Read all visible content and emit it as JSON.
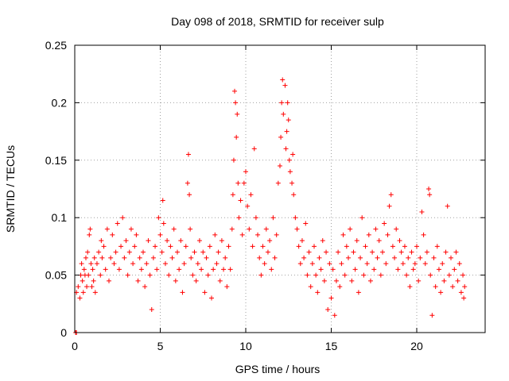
{
  "chart_data": {
    "type": "scatter",
    "title": "Day 098 of 2018, SRMTID for receiver sulp",
    "xlabel": "GPS time / hours",
    "ylabel": "SRMTID / TECUs",
    "xlim": [
      0,
      24
    ],
    "ylim": [
      0,
      0.25
    ],
    "xticks": [
      0,
      5,
      10,
      15,
      20
    ],
    "xtick_labels": [
      "0",
      "5",
      "10",
      "15",
      "20"
    ],
    "yticks": [
      0,
      0.05,
      0.1,
      0.15,
      0.2,
      0.25
    ],
    "ytick_labels": [
      "0",
      "0.05",
      "0.1",
      "0.15",
      "0.2",
      "0.25"
    ],
    "grid": true,
    "marker": "+",
    "series": [
      {
        "color": "#ff0000",
        "points": [
          [
            0.05,
            0.0
          ],
          [
            0.1,
            0.0
          ],
          [
            0.1,
            0.035
          ],
          [
            0.2,
            0.04
          ],
          [
            0.3,
            0.03
          ],
          [
            0.35,
            0.05
          ],
          [
            0.4,
            0.06
          ],
          [
            0.45,
            0.045
          ],
          [
            0.5,
            0.035
          ],
          [
            0.55,
            0.055
          ],
          [
            0.6,
            0.05
          ],
          [
            0.65,
            0.065
          ],
          [
            0.7,
            0.04
          ],
          [
            0.75,
            0.07
          ],
          [
            0.8,
            0.05
          ],
          [
            0.85,
            0.085
          ],
          [
            0.9,
            0.09
          ],
          [
            0.95,
            0.06
          ],
          [
            1.0,
            0.04
          ],
          [
            1.05,
            0.055
          ],
          [
            1.1,
            0.045
          ],
          [
            1.15,
            0.065
          ],
          [
            1.2,
            0.035
          ],
          [
            1.3,
            0.06
          ],
          [
            1.4,
            0.07
          ],
          [
            1.5,
            0.05
          ],
          [
            1.55,
            0.08
          ],
          [
            1.6,
            0.065
          ],
          [
            1.7,
            0.075
          ],
          [
            1.8,
            0.055
          ],
          [
            1.9,
            0.09
          ],
          [
            2.0,
            0.045
          ],
          [
            2.1,
            0.065
          ],
          [
            2.2,
            0.085
          ],
          [
            2.3,
            0.06
          ],
          [
            2.4,
            0.07
          ],
          [
            2.5,
            0.095
          ],
          [
            2.6,
            0.055
          ],
          [
            2.7,
            0.075
          ],
          [
            2.8,
            0.1
          ],
          [
            2.9,
            0.065
          ],
          [
            3.0,
            0.08
          ],
          [
            3.1,
            0.05
          ],
          [
            3.2,
            0.07
          ],
          [
            3.3,
            0.09
          ],
          [
            3.4,
            0.06
          ],
          [
            3.5,
            0.075
          ],
          [
            3.6,
            0.085
          ],
          [
            3.7,
            0.045
          ],
          [
            3.8,
            0.065
          ],
          [
            3.9,
            0.055
          ],
          [
            4.0,
            0.07
          ],
          [
            4.1,
            0.04
          ],
          [
            4.2,
            0.06
          ],
          [
            4.3,
            0.08
          ],
          [
            4.4,
            0.05
          ],
          [
            4.5,
            0.02
          ],
          [
            4.6,
            0.065
          ],
          [
            4.7,
            0.075
          ],
          [
            4.8,
            0.055
          ],
          [
            4.9,
            0.1
          ],
          [
            5.0,
            0.085
          ],
          [
            5.1,
            0.07
          ],
          [
            5.15,
            0.115
          ],
          [
            5.2,
            0.095
          ],
          [
            5.3,
            0.06
          ],
          [
            5.4,
            0.08
          ],
          [
            5.5,
            0.05
          ],
          [
            5.6,
            0.075
          ],
          [
            5.7,
            0.065
          ],
          [
            5.8,
            0.09
          ],
          [
            5.9,
            0.045
          ],
          [
            6.0,
            0.07
          ],
          [
            6.1,
            0.055
          ],
          [
            6.2,
            0.08
          ],
          [
            6.3,
            0.035
          ],
          [
            6.4,
            0.06
          ],
          [
            6.5,
            0.075
          ],
          [
            6.6,
            0.13
          ],
          [
            6.65,
            0.155
          ],
          [
            6.7,
            0.12
          ],
          [
            6.75,
            0.09
          ],
          [
            6.8,
            0.065
          ],
          [
            6.9,
            0.05
          ],
          [
            7.0,
            0.07
          ],
          [
            7.1,
            0.045
          ],
          [
            7.2,
            0.06
          ],
          [
            7.3,
            0.08
          ],
          [
            7.4,
            0.055
          ],
          [
            7.5,
            0.07
          ],
          [
            7.6,
            0.035
          ],
          [
            7.7,
            0.065
          ],
          [
            7.8,
            0.05
          ],
          [
            7.9,
            0.075
          ],
          [
            8.0,
            0.03
          ],
          [
            8.1,
            0.055
          ],
          [
            8.2,
            0.085
          ],
          [
            8.3,
            0.06
          ],
          [
            8.4,
            0.07
          ],
          [
            8.5,
            0.045
          ],
          [
            8.6,
            0.08
          ],
          [
            8.7,
            0.055
          ],
          [
            8.8,
            0.065
          ],
          [
            8.9,
            0.04
          ],
          [
            9.0,
            0.075
          ],
          [
            9.1,
            0.055
          ],
          [
            9.2,
            0.09
          ],
          [
            9.25,
            0.12
          ],
          [
            9.3,
            0.15
          ],
          [
            9.35,
            0.21
          ],
          [
            9.4,
            0.2
          ],
          [
            9.45,
            0.17
          ],
          [
            9.5,
            0.19
          ],
          [
            9.55,
            0.13
          ],
          [
            9.6,
            0.1
          ],
          [
            9.7,
            0.115
          ],
          [
            9.8,
            0.085
          ],
          [
            9.9,
            0.13
          ],
          [
            10.0,
            0.14
          ],
          [
            10.1,
            0.11
          ],
          [
            10.2,
            0.09
          ],
          [
            10.3,
            0.12
          ],
          [
            10.4,
            0.075
          ],
          [
            10.5,
            0.16
          ],
          [
            10.6,
            0.1
          ],
          [
            10.7,
            0.085
          ],
          [
            10.8,
            0.065
          ],
          [
            10.9,
            0.05
          ],
          [
            11.0,
            0.075
          ],
          [
            11.1,
            0.06
          ],
          [
            11.2,
            0.09
          ],
          [
            11.3,
            0.07
          ],
          [
            11.4,
            0.08
          ],
          [
            11.5,
            0.055
          ],
          [
            11.6,
            0.1
          ],
          [
            11.7,
            0.065
          ],
          [
            11.8,
            0.085
          ],
          [
            11.9,
            0.13
          ],
          [
            12.0,
            0.145
          ],
          [
            12.05,
            0.17
          ],
          [
            12.1,
            0.2
          ],
          [
            12.15,
            0.22
          ],
          [
            12.2,
            0.19
          ],
          [
            12.3,
            0.215
          ],
          [
            12.35,
            0.16
          ],
          [
            12.4,
            0.175
          ],
          [
            12.45,
            0.2
          ],
          [
            12.5,
            0.185
          ],
          [
            12.55,
            0.15
          ],
          [
            12.6,
            0.14
          ],
          [
            12.7,
            0.13
          ],
          [
            12.75,
            0.155
          ],
          [
            12.8,
            0.12
          ],
          [
            12.9,
            0.1
          ],
          [
            13.0,
            0.09
          ],
          [
            13.1,
            0.075
          ],
          [
            13.2,
            0.06
          ],
          [
            13.3,
            0.08
          ],
          [
            13.4,
            0.065
          ],
          [
            13.5,
            0.095
          ],
          [
            13.6,
            0.05
          ],
          [
            13.7,
            0.07
          ],
          [
            13.8,
            0.04
          ],
          [
            13.9,
            0.06
          ],
          [
            14.0,
            0.075
          ],
          [
            14.1,
            0.05
          ],
          [
            14.2,
            0.035
          ],
          [
            14.3,
            0.065
          ],
          [
            14.4,
            0.055
          ],
          [
            14.5,
            0.08
          ],
          [
            14.6,
            0.045
          ],
          [
            14.7,
            0.07
          ],
          [
            14.8,
            0.02
          ],
          [
            14.9,
            0.06
          ],
          [
            15.0,
            0.03
          ],
          [
            15.1,
            0.055
          ],
          [
            15.2,
            0.015
          ],
          [
            15.3,
            0.045
          ],
          [
            15.4,
            0.07
          ],
          [
            15.5,
            0.04
          ],
          [
            15.6,
            0.06
          ],
          [
            15.7,
            0.085
          ],
          [
            15.8,
            0.05
          ],
          [
            15.9,
            0.075
          ],
          [
            16.0,
            0.065
          ],
          [
            16.1,
            0.09
          ],
          [
            16.2,
            0.045
          ],
          [
            16.3,
            0.07
          ],
          [
            16.4,
            0.055
          ],
          [
            16.5,
            0.08
          ],
          [
            16.6,
            0.035
          ],
          [
            16.7,
            0.065
          ],
          [
            16.8,
            0.1
          ],
          [
            16.9,
            0.05
          ],
          [
            17.0,
            0.075
          ],
          [
            17.1,
            0.06
          ],
          [
            17.2,
            0.085
          ],
          [
            17.3,
            0.045
          ],
          [
            17.4,
            0.07
          ],
          [
            17.5,
            0.055
          ],
          [
            17.6,
            0.09
          ],
          [
            17.7,
            0.065
          ],
          [
            17.8,
            0.08
          ],
          [
            17.9,
            0.05
          ],
          [
            18.0,
            0.07
          ],
          [
            18.1,
            0.095
          ],
          [
            18.2,
            0.06
          ],
          [
            18.3,
            0.085
          ],
          [
            18.4,
            0.11
          ],
          [
            18.5,
            0.12
          ],
          [
            18.6,
            0.075
          ],
          [
            18.7,
            0.065
          ],
          [
            18.8,
            0.09
          ],
          [
            18.9,
            0.055
          ],
          [
            19.0,
            0.08
          ],
          [
            19.1,
            0.07
          ],
          [
            19.2,
            0.06
          ],
          [
            19.3,
            0.075
          ],
          [
            19.4,
            0.05
          ],
          [
            19.5,
            0.065
          ],
          [
            19.6,
            0.04
          ],
          [
            19.7,
            0.07
          ],
          [
            19.8,
            0.055
          ],
          [
            19.9,
            0.06
          ],
          [
            20.0,
            0.075
          ],
          [
            20.1,
            0.045
          ],
          [
            20.2,
            0.065
          ],
          [
            20.3,
            0.105
          ],
          [
            20.4,
            0.085
          ],
          [
            20.5,
            0.06
          ],
          [
            20.6,
            0.07
          ],
          [
            20.7,
            0.125
          ],
          [
            20.75,
            0.12
          ],
          [
            20.8,
            0.05
          ],
          [
            20.9,
            0.015
          ],
          [
            21.0,
            0.065
          ],
          [
            21.1,
            0.04
          ],
          [
            21.2,
            0.075
          ],
          [
            21.3,
            0.055
          ],
          [
            21.4,
            0.035
          ],
          [
            21.5,
            0.06
          ],
          [
            21.6,
            0.045
          ],
          [
            21.7,
            0.07
          ],
          [
            21.8,
            0.11
          ],
          [
            21.9,
            0.05
          ],
          [
            22.0,
            0.065
          ],
          [
            22.1,
            0.04
          ],
          [
            22.2,
            0.055
          ],
          [
            22.3,
            0.07
          ],
          [
            22.4,
            0.045
          ],
          [
            22.5,
            0.06
          ],
          [
            22.6,
            0.035
          ],
          [
            22.7,
            0.05
          ],
          [
            22.75,
            0.03
          ],
          [
            22.8,
            0.04
          ]
        ]
      }
    ]
  }
}
